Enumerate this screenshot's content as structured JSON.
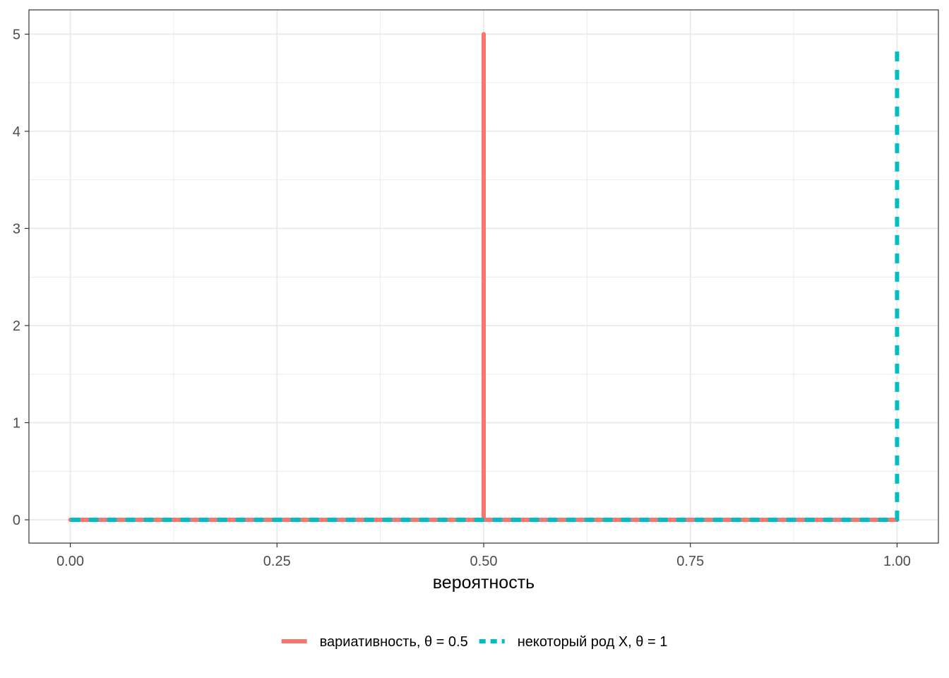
{
  "chart_data": {
    "type": "line",
    "title": "",
    "xlabel": "вероятность",
    "ylabel": "",
    "xlim": [
      -0.05,
      1.05
    ],
    "ylim": [
      -0.24,
      5.25
    ],
    "x_ticks": [
      0,
      0.25,
      0.5,
      0.75,
      1
    ],
    "x_tick_labels": [
      "0.00",
      "0.25",
      "0.50",
      "0.75",
      "1.00"
    ],
    "x_minor_ticks": [
      0.125,
      0.375,
      0.625,
      0.875
    ],
    "y_ticks": [
      0,
      1,
      2,
      3,
      4,
      5
    ],
    "y_tick_labels": [
      "0",
      "1",
      "2",
      "3",
      "4",
      "5"
    ],
    "y_minor_ticks": [
      0.5,
      1.5,
      2.5,
      3.5,
      4.5
    ],
    "grid": true,
    "legend_position": "bottom",
    "series": [
      {
        "name": "вариативность, θ = 0.5",
        "color": "#F8766D",
        "style": "solid",
        "points": [
          [
            0,
            0
          ],
          [
            0.5,
            0
          ],
          [
            0.5,
            5
          ],
          [
            0.5,
            0
          ],
          [
            1,
            0
          ]
        ]
      },
      {
        "name": "некоторый род X, θ = 1",
        "color": "#00BFC4",
        "style": "dashed",
        "points": [
          [
            0,
            0
          ],
          [
            1,
            0
          ],
          [
            1,
            4.9
          ]
        ]
      }
    ]
  }
}
